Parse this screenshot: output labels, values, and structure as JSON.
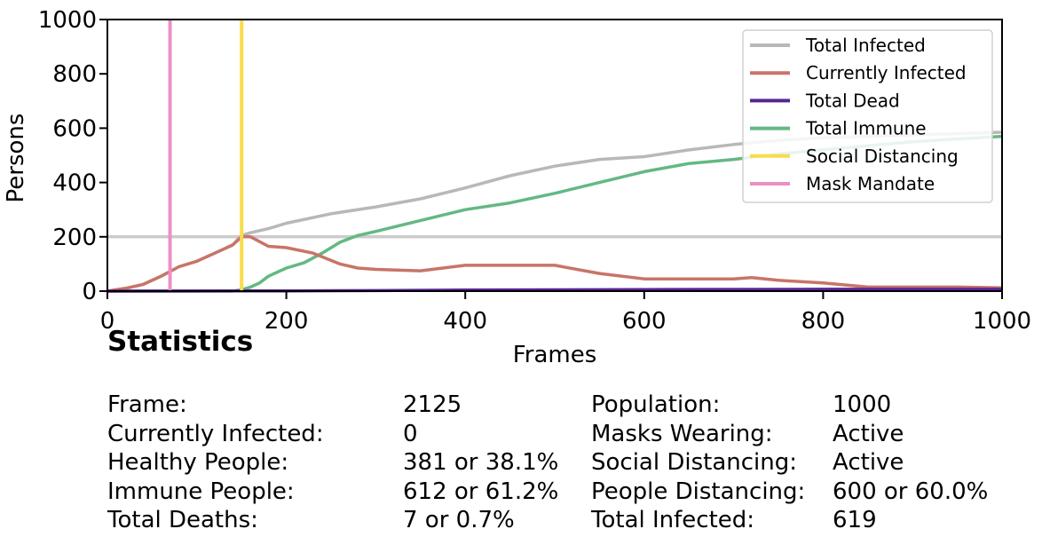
{
  "chart_data": {
    "type": "line",
    "xlabel": "Frames",
    "ylabel": "Persons",
    "xlim": [
      0,
      1000
    ],
    "ylim": [
      0,
      1000
    ],
    "x_ticks": [
      0,
      200,
      400,
      600,
      800,
      1000
    ],
    "y_ticks": [
      0,
      200,
      400,
      600,
      800,
      1000
    ],
    "legend_position": "top-right",
    "hline": {
      "y": 200,
      "color": "#cccccc"
    },
    "series": [
      {
        "name": "Total Infected",
        "color": "#b8b8b8",
        "x": [
          0,
          20,
          40,
          60,
          80,
          100,
          120,
          140,
          150,
          160,
          180,
          200,
          250,
          300,
          350,
          400,
          450,
          500,
          550,
          600,
          650,
          700,
          750,
          800,
          850,
          900,
          950,
          1000
        ],
        "y": [
          0,
          10,
          25,
          55,
          90,
          110,
          140,
          170,
          205,
          215,
          230,
          250,
          285,
          310,
          340,
          380,
          425,
          460,
          485,
          495,
          520,
          540,
          555,
          565,
          570,
          575,
          580,
          585
        ]
      },
      {
        "name": "Currently Infected",
        "color": "#c87468",
        "x": [
          0,
          20,
          40,
          60,
          80,
          100,
          120,
          140,
          150,
          160,
          180,
          200,
          230,
          260,
          280,
          300,
          350,
          400,
          450,
          500,
          550,
          600,
          650,
          700,
          720,
          750,
          800,
          850,
          900,
          950,
          1000
        ],
        "y": [
          0,
          10,
          25,
          55,
          90,
          110,
          140,
          170,
          200,
          200,
          165,
          160,
          140,
          100,
          85,
          80,
          75,
          95,
          95,
          95,
          65,
          45,
          45,
          45,
          50,
          40,
          30,
          15,
          15,
          15,
          12
        ]
      },
      {
        "name": "Total Dead",
        "color": "#572594",
        "x": [
          0,
          200,
          300,
          400,
          500,
          600,
          800,
          1000
        ],
        "y": [
          0,
          1,
          2,
          4,
          5,
          6,
          7,
          7
        ]
      },
      {
        "name": "Total Immune",
        "color": "#64b883",
        "x": [
          0,
          140,
          150,
          160,
          170,
          180,
          200,
          220,
          240,
          260,
          280,
          300,
          350,
          400,
          450,
          500,
          550,
          600,
          650,
          700,
          750,
          800,
          850,
          900,
          950,
          1000
        ],
        "y": [
          0,
          0,
          5,
          15,
          30,
          55,
          85,
          105,
          140,
          180,
          205,
          220,
          260,
          300,
          325,
          360,
          400,
          440,
          470,
          485,
          505,
          520,
          535,
          550,
          560,
          570
        ]
      },
      {
        "name": "Social Distancing",
        "color": "#f9dc4a",
        "vline": 150
      },
      {
        "name": "Mask Mandate",
        "color": "#ec8fc4",
        "vline": 70
      }
    ]
  },
  "statistics": {
    "title": "Statistics",
    "rows": [
      {
        "label1": "Frame:",
        "value1": "2125",
        "label2": "Population:",
        "value2": "1000"
      },
      {
        "label1": "Currently Infected:",
        "value1": "0",
        "label2": "Masks Wearing:",
        "value2": "Active"
      },
      {
        "label1": "Healthy People:",
        "value1": "381 or 38.1%",
        "label2": "Social Distancing:",
        "value2": "Active"
      },
      {
        "label1": "Immune People:",
        "value1": "612 or 61.2%",
        "label2": "People Distancing:",
        "value2": "600 or 60.0%"
      },
      {
        "label1": "Total Deaths:",
        "value1": "7 or 0.7%",
        "label2": "Total Infected:",
        "value2": "619"
      }
    ]
  }
}
